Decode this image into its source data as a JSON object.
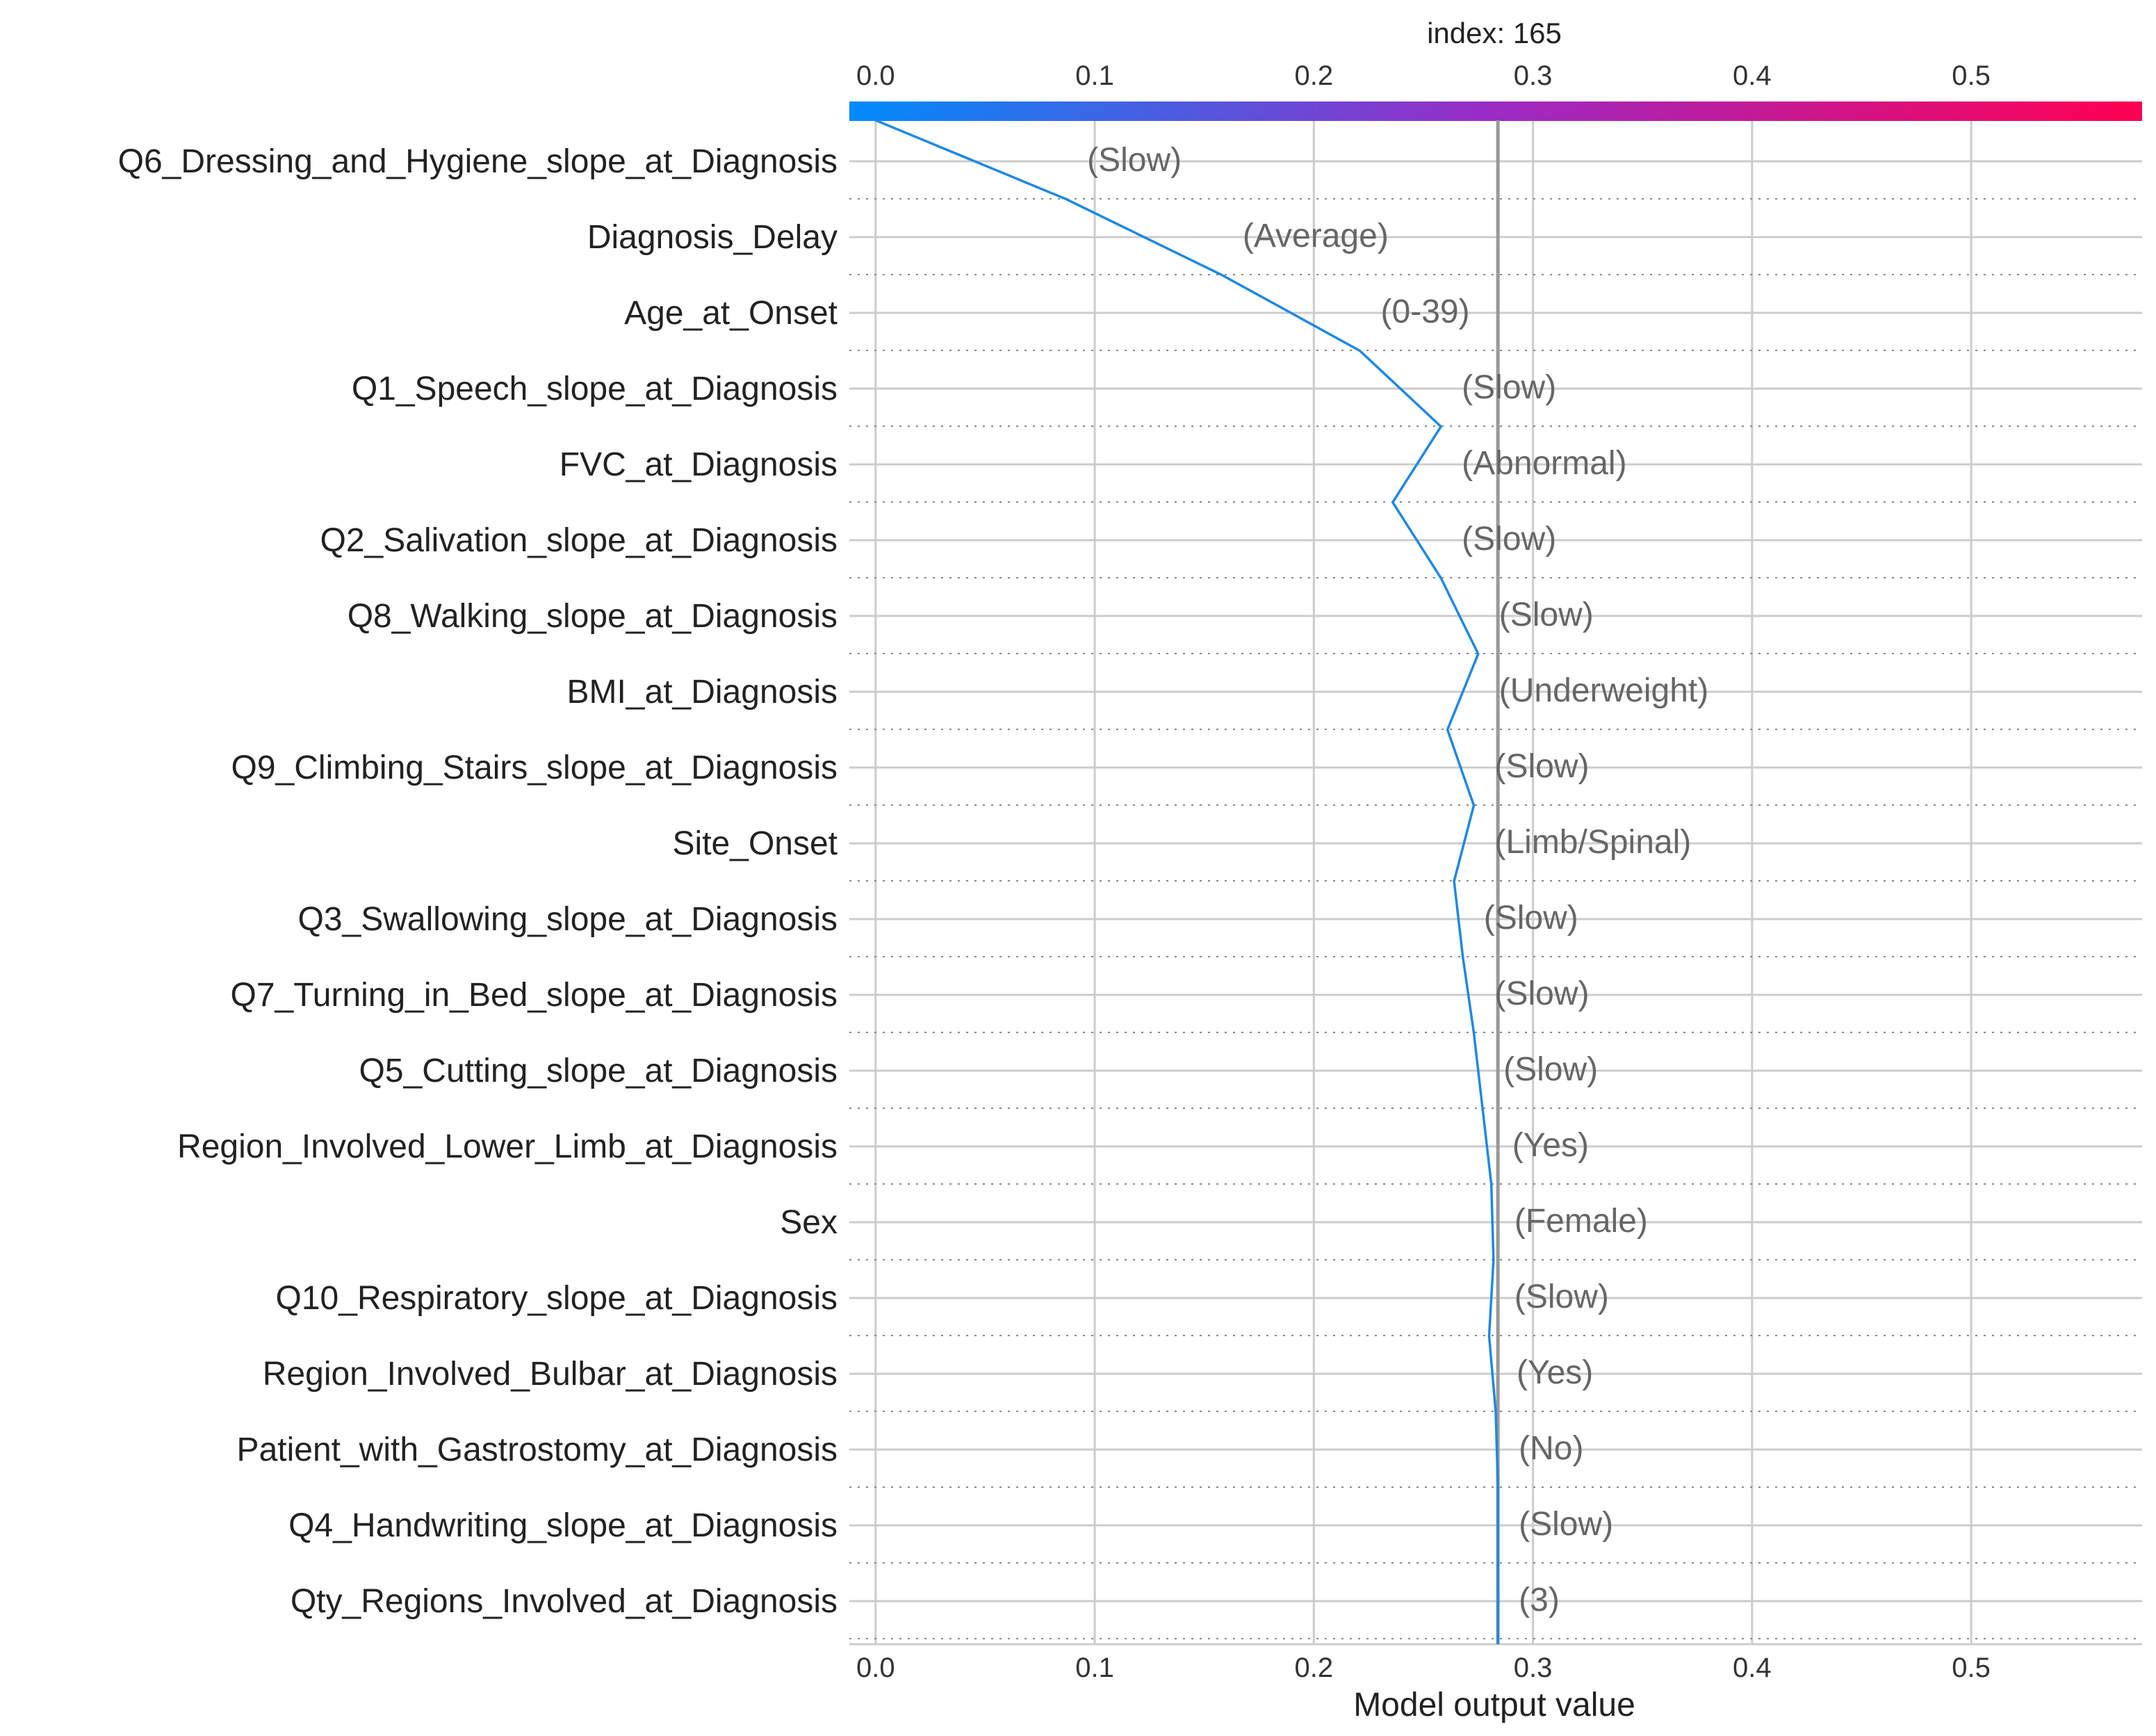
{
  "chart_data": {
    "type": "line",
    "title": "index: 165",
    "xlabel": "Model output value",
    "xlim": [
      -0.012,
      0.578
    ],
    "xticks": [
      0.0,
      0.1,
      0.2,
      0.3,
      0.4,
      0.5
    ],
    "xtick_labels": [
      "0.0",
      "0.1",
      "0.2",
      "0.3",
      "0.4",
      "0.5"
    ],
    "expected_value": 0.284,
    "grid": true,
    "colors": {
      "low": "#008bfb",
      "mid": "#9b2bc4",
      "high": "#ff0051",
      "line": "#1e88e5",
      "text": "#222222",
      "value_text": "#666666",
      "grid": "#cccccc",
      "base_line": "#999999"
    },
    "features": [
      "Q6_Dressing_and_Hygiene_slope_at_Diagnosis",
      "Diagnosis_Delay",
      "Age_at_Onset",
      "Q1_Speech_slope_at_Diagnosis",
      "FVC_at_Diagnosis",
      "Q2_Salivation_slope_at_Diagnosis",
      "Q8_Walking_slope_at_Diagnosis",
      "BMI_at_Diagnosis",
      "Q9_Climbing_Stairs_slope_at_Diagnosis",
      "Site_Onset",
      "Q3_Swallowing_slope_at_Diagnosis",
      "Q7_Turning_in_Bed_slope_at_Diagnosis",
      "Q5_Cutting_slope_at_Diagnosis",
      "Region_Involved_Lower_Limb_at_Diagnosis",
      "Sex",
      "Q10_Respiratory_slope_at_Diagnosis",
      "Region_Involved_Bulbar_at_Diagnosis",
      "Patient_with_Gastrostomy_at_Diagnosis",
      "Q4_Handwriting_slope_at_Diagnosis",
      "Qty_Regions_Involved_at_Diagnosis"
    ],
    "feature_values": [
      "(Slow)",
      "(Average)",
      "(0-39)",
      "(Slow)",
      "(Abnormal)",
      "(Slow)",
      "(Slow)",
      "(Underweight)",
      "(Slow)",
      "(Limb/Spinal)",
      "(Slow)",
      "(Slow)",
      "(Slow)",
      "(Yes)",
      "(Female)",
      "(Slow)",
      "(Yes)",
      "(No)",
      "(Slow)",
      "(3)"
    ],
    "path_values": [
      0.0,
      0.087,
      0.158,
      0.221,
      0.258,
      0.236,
      0.258,
      0.275,
      0.261,
      0.273,
      0.264,
      0.268,
      0.273,
      0.277,
      0.281,
      0.282,
      0.28,
      0.283,
      0.284,
      0.284,
      0.284
    ]
  }
}
